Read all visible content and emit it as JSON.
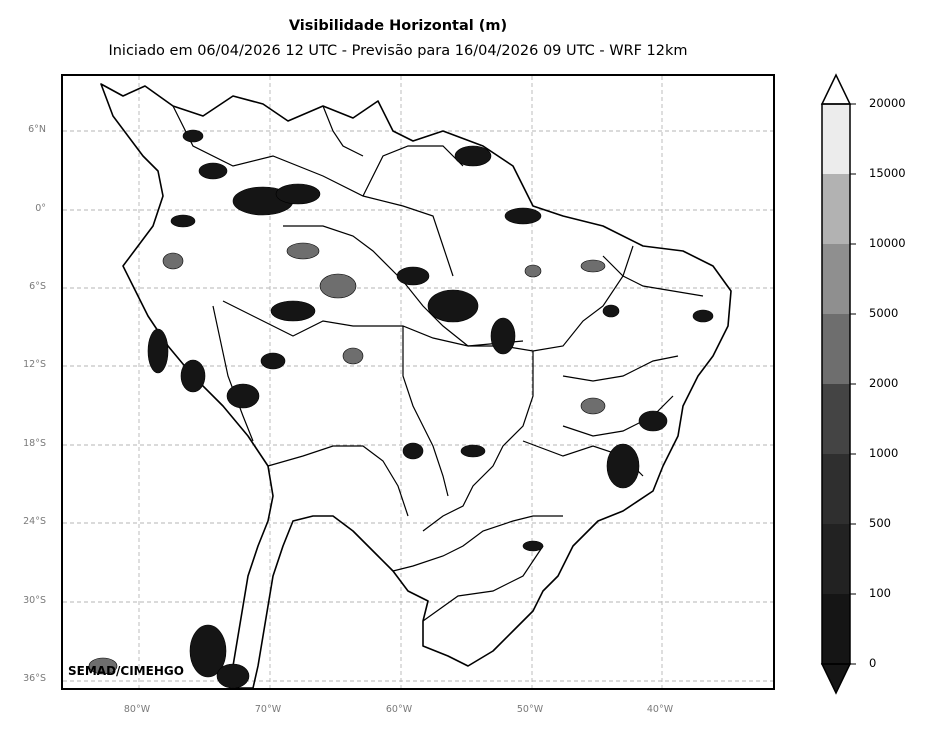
{
  "title": "Visibilidade Horizontal (m)",
  "subtitle": "Iniciado em 06/04/2026 12 UTC - Previsão para 16/04/2026 09 UTC - WRF 12km",
  "credit": "SEMAD/CIMEHGO",
  "lat_labels": [
    "6°N",
    "0°",
    "6°S",
    "12°S",
    "18°S",
    "24°S",
    "30°S",
    "36°S"
  ],
  "lon_labels": [
    "80°W",
    "70°W",
    "60°W",
    "50°W",
    "40°W"
  ],
  "colorbar": {
    "labels": [
      "20000",
      "15000",
      "10000",
      "5000",
      "2000",
      "1000",
      "500",
      "100",
      "0"
    ],
    "colors": [
      "#ececec",
      "#b2b2b2",
      "#8f8f8f",
      "#6e6e6e",
      "#444444",
      "#2f2f2f",
      "#222222",
      "#151515"
    ]
  },
  "colors": {
    "low_visibility": "#111111",
    "medium": "#5a5a5a",
    "border": "#000000",
    "grid": "#b5b5b5"
  }
}
